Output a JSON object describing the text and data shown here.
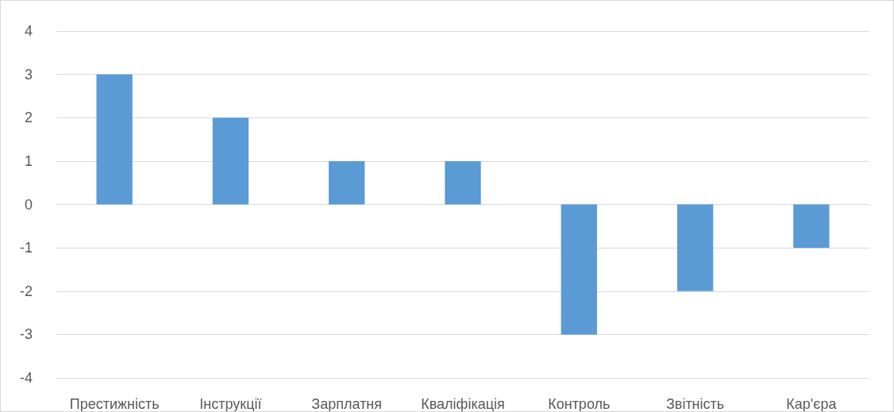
{
  "chart_data": {
    "type": "bar",
    "categories": [
      "Престижність",
      "Інструкції",
      "Зарплатня",
      "Кваліфікація",
      "Контроль",
      "Звітність",
      "Кар'єра"
    ],
    "values": [
      3,
      2,
      1,
      1,
      -3,
      -2,
      -1
    ],
    "color": "#5b9bd5",
    "ylim": [
      -4,
      4
    ],
    "yticks": [
      -4,
      -3,
      -2,
      -1,
      0,
      1,
      2,
      3,
      4
    ],
    "grid": "y"
  }
}
